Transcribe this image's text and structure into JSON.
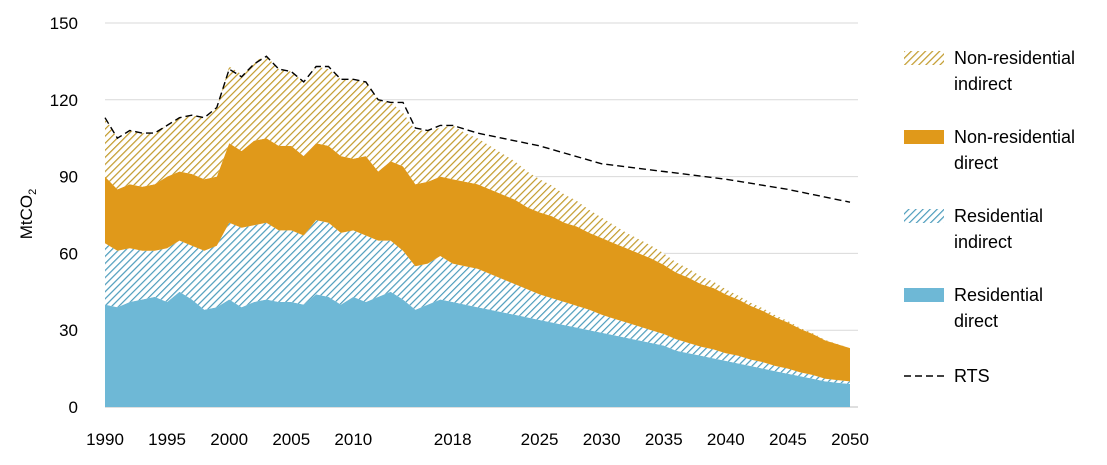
{
  "chart_data": {
    "type": "area",
    "stacked": true,
    "ylabel": "MtCO",
    "ylabel_sub": "2",
    "ylim": [
      0,
      150
    ],
    "yticks": [
      0,
      30,
      60,
      90,
      120,
      150
    ],
    "xlim": [
      1990,
      2050
    ],
    "xtick_labels": [
      "1990",
      "1995",
      "2000",
      "2005",
      "2010",
      "2018",
      "2025",
      "2030",
      "2035",
      "2040",
      "2045",
      "2050"
    ],
    "grid": true,
    "legend_position": "right",
    "x": [
      1990,
      1991,
      1992,
      1993,
      1994,
      1995,
      1996,
      1997,
      1998,
      1999,
      2000,
      2001,
      2002,
      2003,
      2004,
      2005,
      2006,
      2007,
      2008,
      2009,
      2010,
      2011,
      2012,
      2013,
      2014,
      2015,
      2016,
      2017,
      2018,
      2019,
      2020,
      2021,
      2022,
      2023,
      2024,
      2025,
      2026,
      2027,
      2028,
      2029,
      2030,
      2031,
      2032,
      2033,
      2034,
      2035,
      2036,
      2037,
      2038,
      2039,
      2040,
      2041,
      2042,
      2043,
      2044,
      2045,
      2046,
      2047,
      2048,
      2049,
      2050
    ],
    "series": [
      {
        "name": "Residential direct",
        "label_lines": [
          "Residential",
          "direct"
        ],
        "color": "#6eb8d6",
        "pattern": "solid",
        "values": [
          40,
          39,
          41,
          42,
          43,
          41,
          45,
          42,
          38,
          39,
          42,
          39,
          41,
          42,
          41,
          41,
          40,
          44,
          43,
          40,
          43,
          41,
          43,
          45,
          42,
          38,
          40,
          42,
          41,
          40,
          39,
          38,
          37,
          36,
          35,
          34,
          33,
          32,
          31,
          30,
          29,
          28,
          27,
          26,
          25,
          24,
          22,
          21,
          20,
          19,
          18,
          17,
          16,
          15,
          14,
          13,
          12,
          11,
          10,
          9.5,
          9
        ]
      },
      {
        "name": "Residential indirect",
        "label_lines": [
          "Residential",
          "indirect"
        ],
        "color": "#4c9cbc",
        "pattern": "hatch",
        "values": [
          24,
          22,
          21,
          19,
          18,
          21,
          20,
          21,
          23,
          24,
          30,
          31,
          30,
          30,
          28,
          28,
          27,
          29,
          29,
          28,
          26,
          26,
          22,
          20,
          19,
          17,
          16,
          17,
          15,
          15,
          15,
          14,
          13,
          12,
          11,
          10,
          9.5,
          9,
          8.5,
          8,
          7,
          6.5,
          6,
          5.5,
          5,
          4.5,
          4.5,
          4,
          3.5,
          3.5,
          3,
          3,
          2.5,
          2.5,
          2,
          2,
          1.5,
          1.5,
          1,
          1,
          1
        ]
      },
      {
        "name": "Non-residential direct",
        "label_lines": [
          "Non-residential",
          "direct"
        ],
        "color": "#e0991a",
        "pattern": "solid",
        "values": [
          26,
          24,
          25,
          25,
          26,
          28,
          27,
          28,
          28,
          27,
          31,
          30,
          33,
          33,
          33,
          33,
          31,
          30,
          30,
          30,
          28,
          31,
          27,
          31,
          33,
          32,
          32,
          31,
          33,
          33,
          33,
          33,
          33,
          33,
          32,
          32,
          32,
          31,
          31,
          30,
          30,
          29.5,
          29,
          28.5,
          28,
          27,
          26,
          25.5,
          24.5,
          24,
          23,
          22,
          21,
          20,
          19,
          18,
          17,
          16,
          15,
          14,
          13
        ]
      },
      {
        "name": "Non-residential indirect",
        "label_lines": [
          "Non-residential",
          "indirect"
        ],
        "color": "#c8a22e",
        "pattern": "hatch",
        "values": [
          23,
          20,
          21,
          21,
          20,
          20,
          21,
          23,
          24,
          27,
          30,
          30,
          31,
          32,
          30,
          29,
          29,
          30,
          30,
          30,
          31,
          29,
          28,
          23,
          21,
          21,
          20,
          19,
          21,
          19,
          18,
          17,
          16,
          15,
          14,
          13,
          12,
          11,
          10,
          9,
          8,
          7,
          6,
          5.5,
          5,
          4.5,
          4,
          3.5,
          3,
          2.5,
          2,
          1.5,
          1.2,
          1,
          0.8,
          0.6,
          0.4,
          0.3,
          0.2,
          0.1,
          0
        ]
      }
    ],
    "rts": {
      "name": "RTS",
      "label": "RTS",
      "color": "#000000",
      "x": [
        1990,
        1991,
        1992,
        1993,
        1994,
        1995,
        1996,
        1997,
        1998,
        1999,
        2000,
        2001,
        2002,
        2003,
        2004,
        2005,
        2006,
        2007,
        2008,
        2009,
        2010,
        2011,
        2012,
        2013,
        2014,
        2015,
        2016,
        2017,
        2018,
        2020,
        2025,
        2030,
        2035,
        2040,
        2045,
        2050
      ],
      "values": [
        113,
        105,
        108,
        107,
        107,
        110,
        113,
        114,
        113,
        117,
        132,
        129,
        134,
        137,
        132,
        131,
        127,
        133,
        133,
        128,
        128,
        127,
        120,
        119,
        119,
        109,
        108,
        110,
        110,
        107,
        102,
        95,
        92,
        89,
        85,
        80
      ]
    }
  }
}
